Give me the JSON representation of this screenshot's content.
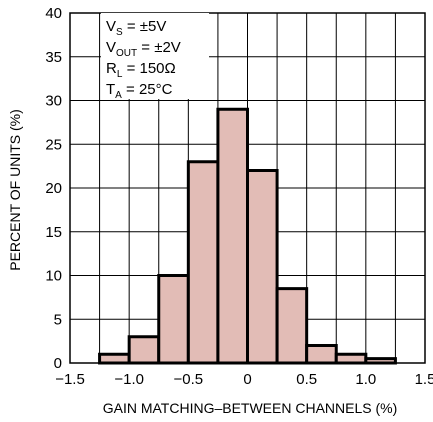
{
  "colors": {
    "bar_fill": "#e2bcb6",
    "bar_stroke": "#000000",
    "grid": "#000000",
    "background": "#ffffff"
  },
  "chart_data": {
    "type": "bar",
    "subtype": "histogram",
    "xlabel": "GAIN MATCHING–BETWEEN CHANNELS (%)",
    "ylabel": "PERCENT OF UNITS (%)",
    "xlim": [
      -1.5,
      1.5
    ],
    "ylim": [
      0,
      40
    ],
    "grid": true,
    "bin_width": 0.25,
    "bins": [
      {
        "start": -1.25,
        "end": -1.0,
        "value": 1
      },
      {
        "start": -1.0,
        "end": -0.75,
        "value": 3
      },
      {
        "start": -0.75,
        "end": -0.5,
        "value": 10
      },
      {
        "start": -0.5,
        "end": -0.25,
        "value": 23
      },
      {
        "start": -0.25,
        "end": 0.0,
        "value": 29
      },
      {
        "start": 0.0,
        "end": 0.25,
        "value": 22
      },
      {
        "start": 0.25,
        "end": 0.5,
        "value": 8.5
      },
      {
        "start": 0.5,
        "end": 0.75,
        "value": 2
      },
      {
        "start": 0.75,
        "end": 1.0,
        "value": 1
      },
      {
        "start": 1.0,
        "end": 1.25,
        "value": 0.5
      }
    ],
    "x_ticks": [
      -1.5,
      -1.0,
      -0.5,
      0,
      0.5,
      1.0,
      1.5
    ],
    "x_tick_labels": [
      "−1.5",
      "−1.0",
      "−0.5",
      "0",
      "0.5",
      "1.0",
      "1.5"
    ],
    "y_ticks": [
      0,
      5,
      10,
      15,
      20,
      25,
      30,
      35,
      40
    ],
    "y_tick_labels": [
      "0",
      "5",
      "10",
      "15",
      "20",
      "25",
      "30",
      "35",
      "40"
    ],
    "annotations": {
      "vs": {
        "main": "V",
        "sub": "S",
        "rest": " = ±5V"
      },
      "vout": {
        "main": "V",
        "sub": "OUT",
        "rest": " = ±2V"
      },
      "rl": {
        "main": "R",
        "sub": "L",
        "rest": " = 150Ω"
      },
      "ta": {
        "main": "T",
        "sub": "A",
        "rest": " = 25°C"
      }
    }
  }
}
